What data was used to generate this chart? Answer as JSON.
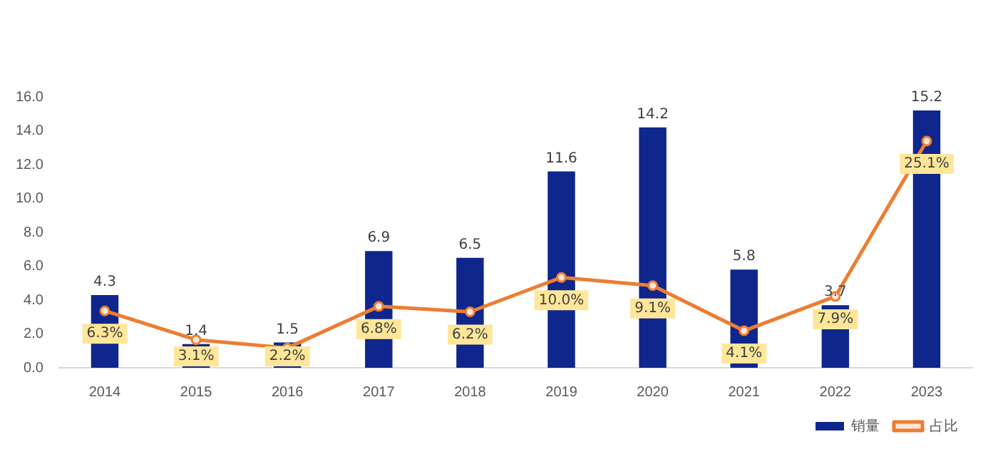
{
  "chart_data": {
    "type": "bar",
    "categories": [
      "2014",
      "2015",
      "2016",
      "2017",
      "2018",
      "2019",
      "2020",
      "2021",
      "2022",
      "2023"
    ],
    "series": [
      {
        "name": "销量",
        "color": "#0f268c",
        "values": [
          4.3,
          1.4,
          1.5,
          6.9,
          6.5,
          11.6,
          14.2,
          5.8,
          3.7,
          15.2
        ],
        "value_labels": [
          "4.3",
          "1.4",
          "1.5",
          "6.9",
          "6.5",
          "11.6",
          "14.2",
          "5.8",
          "3.7",
          "15.2"
        ]
      },
      {
        "name": "占比",
        "type": "line",
        "axis": "y2",
        "color": "#ed7d31",
        "values": [
          6.3,
          3.1,
          2.2,
          6.8,
          6.2,
          10.0,
          9.1,
          4.1,
          7.9,
          25.1
        ],
        "value_labels": [
          "6.3%",
          "3.1%",
          "2.2%",
          "6.8%",
          "6.2%",
          "10.0%",
          "9.1%",
          "4.1%",
          "7.9%",
          "25.1%"
        ]
      }
    ],
    "ylim": [
      0,
      16
    ],
    "yticks": [
      {
        "value": 0,
        "label": "0.0"
      },
      {
        "value": 2,
        "label": "2.0"
      },
      {
        "value": 4,
        "label": "4.0"
      },
      {
        "value": 6,
        "label": "6.0"
      },
      {
        "value": 8,
        "label": "8.0"
      },
      {
        "value": 10,
        "label": "10.0"
      },
      {
        "value": 12,
        "label": "12.0"
      },
      {
        "value": 14,
        "label": "14.0"
      },
      {
        "value": 16,
        "label": "16.0"
      }
    ],
    "grid": false,
    "legend": "bottom right",
    "marker": "circle",
    "line_style": "solid"
  }
}
